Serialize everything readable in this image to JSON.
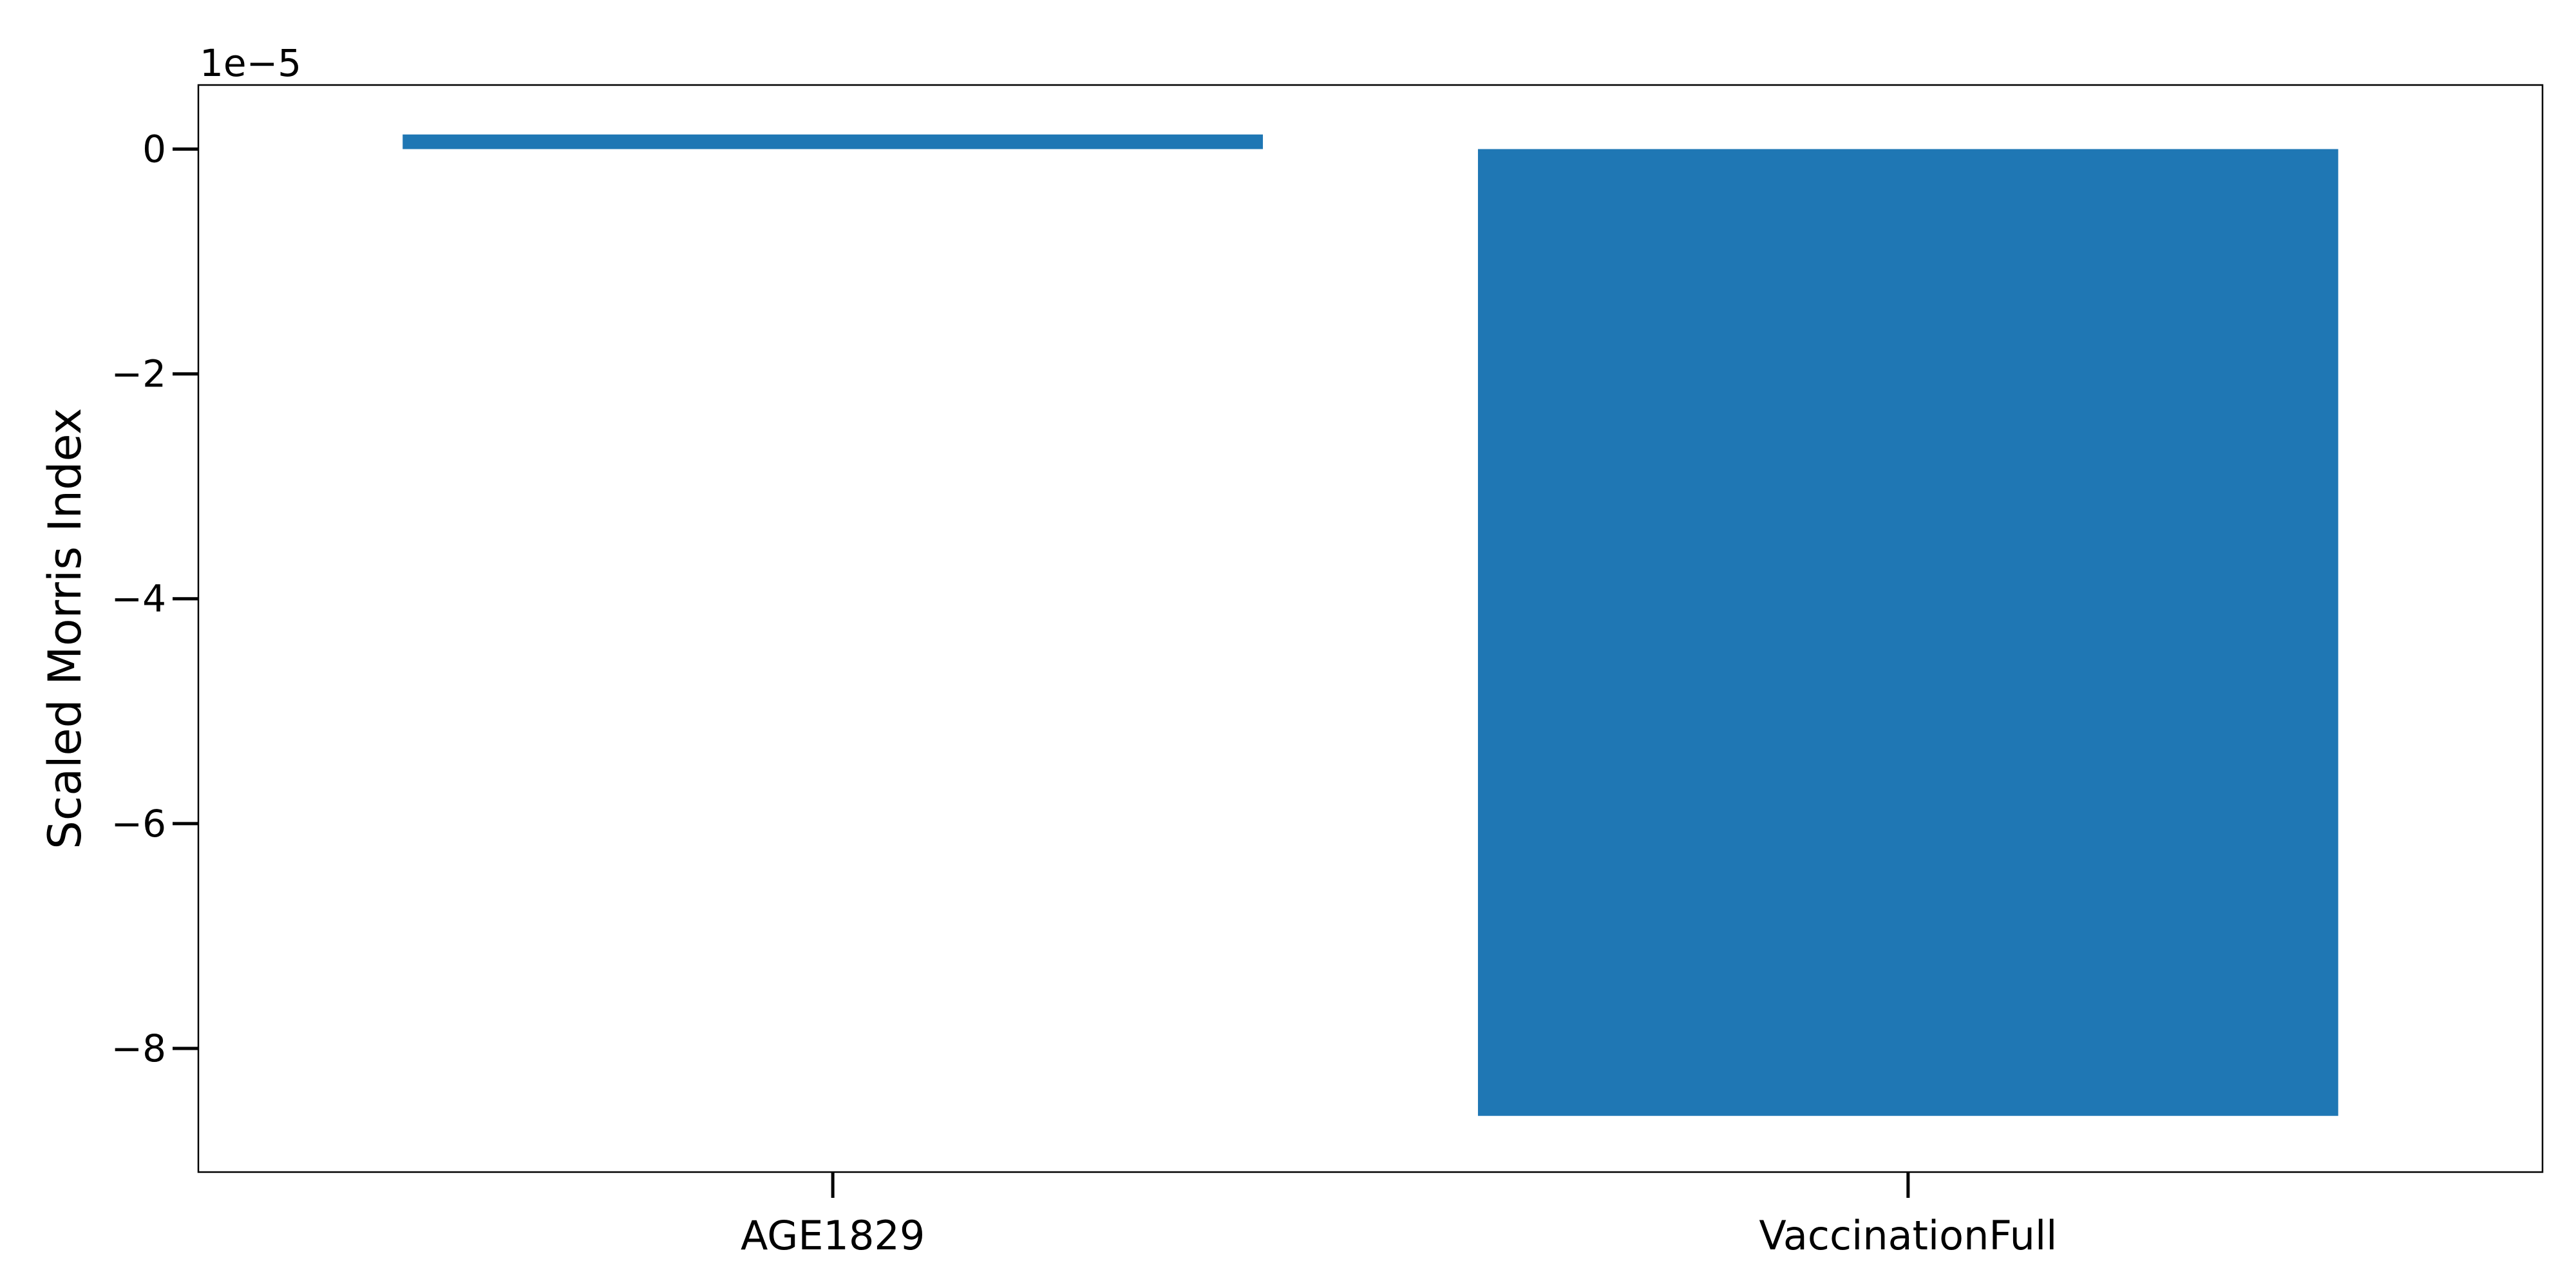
{
  "chart_data": {
    "type": "bar",
    "categories": [
      "AGE1829",
      "VaccinationFull"
    ],
    "values": [
      1.3e-06,
      -8.6e-05
    ],
    "title": "",
    "xlabel": "",
    "ylabel": "Scaled Morris Index",
    "ylim": [
      -9.1e-05,
      5.7e-06
    ],
    "yticks": [
      0,
      -2,
      -4,
      -6,
      -8
    ],
    "ytick_labels": [
      "0",
      "−2",
      "−4",
      "−6",
      "−8"
    ],
    "scale_label": "1e−5",
    "scale_factor": 1e-05,
    "grid": false,
    "bar_color": "#1f77b4"
  }
}
